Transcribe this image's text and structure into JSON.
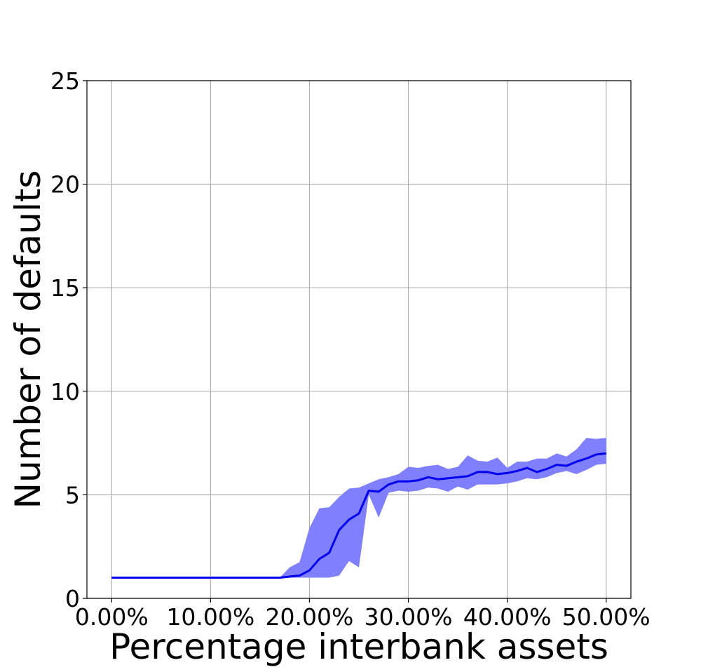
{
  "chart_data": {
    "type": "line",
    "title": "",
    "xlabel": "Percentage interbank assets",
    "ylabel": "Number of defaults",
    "xlim": [
      -0.025,
      0.525
    ],
    "ylim": [
      0,
      25
    ],
    "x_tick_values": [
      0.0,
      0.1,
      0.2,
      0.3,
      0.4,
      0.5
    ],
    "x_ticks": [
      "0.00%",
      "10.00%",
      "20.00%",
      "30.00%",
      "40.00%",
      "50.00%"
    ],
    "y_tick_values": [
      0,
      5,
      10,
      15,
      20,
      25
    ],
    "y_ticks": [
      "0",
      "5",
      "10",
      "15",
      "20",
      "25"
    ],
    "grid": true,
    "legend": "none",
    "colors": {
      "line": "#0000ee",
      "band": "#8080ff"
    },
    "series": [
      {
        "values_x": [
          0.0,
          0.01,
          0.02,
          0.03,
          0.04,
          0.05,
          0.06,
          0.07,
          0.08,
          0.09,
          0.1,
          0.11,
          0.12,
          0.13,
          0.14,
          0.15,
          0.16,
          0.17,
          0.18,
          0.19,
          0.2,
          0.21,
          0.22,
          0.23,
          0.24,
          0.25,
          0.26,
          0.27,
          0.28,
          0.29,
          0.3,
          0.31,
          0.32,
          0.33,
          0.34,
          0.35,
          0.36,
          0.37,
          0.38,
          0.39,
          0.4,
          0.41,
          0.42,
          0.43,
          0.44,
          0.45,
          0.46,
          0.47,
          0.48,
          0.49,
          0.5
        ],
        "values_y": [
          1,
          1,
          1,
          1,
          1,
          1,
          1,
          1,
          1,
          1,
          1,
          1,
          1,
          1,
          1,
          1,
          1,
          1,
          1.05,
          1.1,
          1.35,
          1.9,
          2.2,
          3.3,
          3.8,
          4.1,
          5.2,
          5.15,
          5.5,
          5.65,
          5.65,
          5.7,
          5.85,
          5.75,
          5.8,
          5.85,
          5.9,
          6.1,
          6.1,
          6.0,
          6.05,
          6.15,
          6.3,
          6.1,
          6.25,
          6.45,
          6.4,
          6.6,
          6.75,
          6.95,
          7.0
        ],
        "lower": [
          1,
          1,
          1,
          1,
          1,
          1,
          1,
          1,
          1,
          1,
          1,
          1,
          1,
          1,
          1,
          1,
          1,
          1,
          1.0,
          1.0,
          1.0,
          1.0,
          1.0,
          1.1,
          1.8,
          1.5,
          5.0,
          3.9,
          5.1,
          5.2,
          5.15,
          5.2,
          5.35,
          5.3,
          5.15,
          5.4,
          5.25,
          5.5,
          5.5,
          5.5,
          5.55,
          5.65,
          5.8,
          5.75,
          5.85,
          6.05,
          6.15,
          6.0,
          6.2,
          6.45,
          6.5
        ],
        "upper": [
          1,
          1,
          1,
          1,
          1,
          1,
          1,
          1,
          1,
          1,
          1,
          1,
          1,
          1,
          1,
          1,
          1,
          1,
          1.5,
          1.75,
          3.4,
          4.35,
          4.4,
          4.9,
          5.3,
          5.35,
          5.55,
          5.75,
          5.85,
          6.0,
          6.35,
          6.3,
          6.4,
          6.45,
          6.25,
          6.35,
          6.9,
          6.65,
          6.6,
          6.8,
          6.3,
          6.6,
          6.6,
          6.75,
          6.75,
          7.0,
          6.85,
          7.2,
          7.75,
          7.7,
          7.75
        ]
      }
    ]
  }
}
